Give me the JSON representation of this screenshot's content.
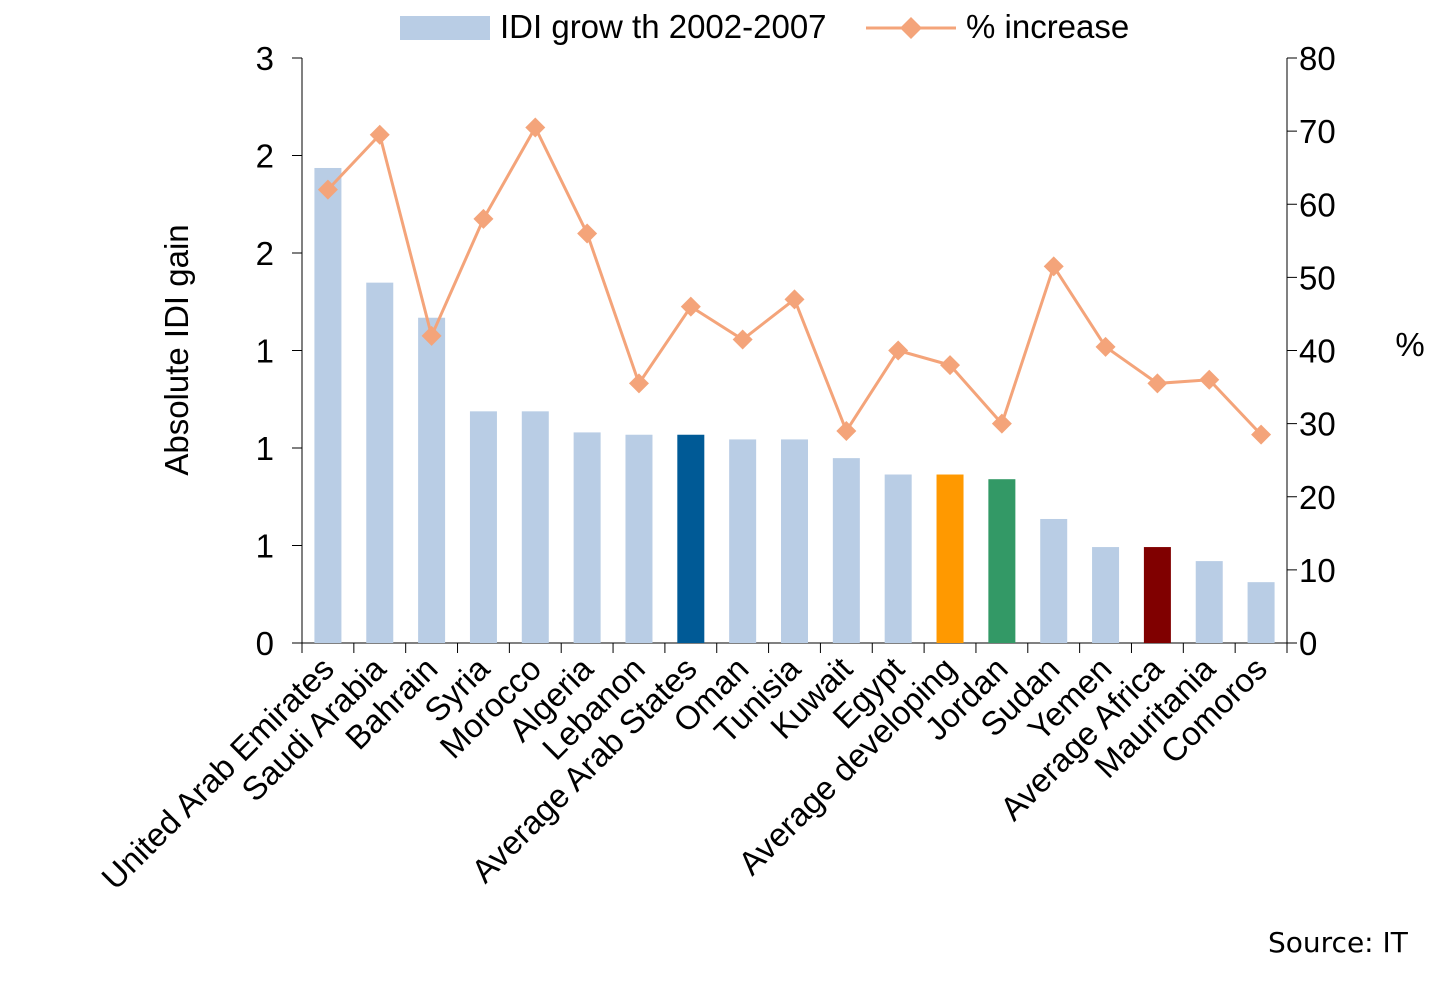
{
  "chart_data": {
    "type": "bar",
    "categories": [
      "United Arab Emirates",
      "Saudi Arabia",
      "Bahrain",
      "Syria",
      "Morocco",
      "Algeria",
      "Lebanon",
      "Average Arab States",
      "Oman",
      "Tunisia",
      "Kuwait",
      "Egypt",
      "Average developing",
      "Jordan",
      "Sudan",
      "Yemen",
      "Average Africa",
      "Mauritania",
      "Comoros"
    ],
    "series": [
      {
        "name": "IDI grow th 2002-2007",
        "type": "bar",
        "axis": "left",
        "color": "#b9cde5",
        "values": [
          2.03,
          1.54,
          1.39,
          0.99,
          0.99,
          0.9,
          0.89,
          0.89,
          0.87,
          0.87,
          0.79,
          0.72,
          0.72,
          0.7,
          0.53,
          0.41,
          0.41,
          0.35,
          0.26
        ],
        "highlight_colors": {
          "Average Arab States": "#005a96",
          "Average developing": "#ff9900",
          "Jordan": "#339966",
          "Average Africa": "#800000"
        }
      },
      {
        "name": "% increase",
        "type": "line",
        "axis": "right",
        "color": "#f4a47a",
        "marker": "diamond",
        "values": [
          62,
          69.5,
          42,
          58,
          70.5,
          56,
          35.5,
          46,
          41.5,
          47,
          29,
          40,
          38,
          30,
          51.5,
          40.5,
          35.5,
          36,
          28.5
        ]
      }
    ],
    "ylabel": "Absolute IDI gain",
    "y2label": "%",
    "ylim": [
      0,
      2.5
    ],
    "y_ticks": [
      "0",
      "1",
      "1",
      "1",
      "2",
      "2",
      "3"
    ],
    "y2lim": [
      0,
      80
    ],
    "y2_ticks": [
      "0",
      "10",
      "20",
      "30",
      "40",
      "50",
      "60",
      "70",
      "80"
    ],
    "legend_position": "top-center",
    "grid": false,
    "source": "Source: IT"
  }
}
